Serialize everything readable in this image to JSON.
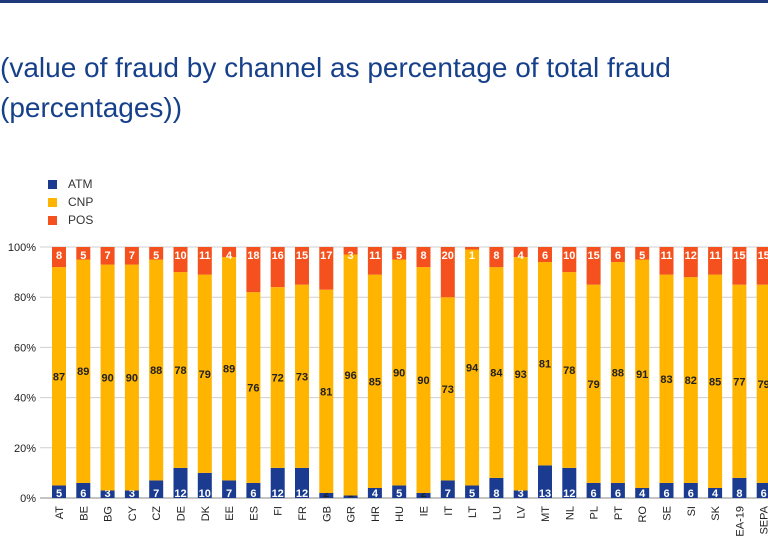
{
  "title_lines": [
    "(value of fraud by channel as percentage of total fraud",
    "(percentages))"
  ],
  "chart_data": {
    "type": "bar",
    "stacked": true,
    "categories": [
      "AT",
      "BE",
      "BG",
      "CY",
      "CZ",
      "DE",
      "DK",
      "EE",
      "ES",
      "FI",
      "FR",
      "GB",
      "GR",
      "HR",
      "HU",
      "IE",
      "IT",
      "LT",
      "LU",
      "LV",
      "MT",
      "NL",
      "PL",
      "PT",
      "RO",
      "SE",
      "SI",
      "SK",
      "EA-19",
      "SEPA"
    ],
    "series": [
      {
        "name": "ATM",
        "color": "#1a3b8f",
        "values": [
          5,
          6,
          3,
          3,
          7,
          12,
          10,
          7,
          6,
          12,
          12,
          2,
          1,
          4,
          5,
          2,
          7,
          5,
          8,
          3,
          13,
          12,
          6,
          6,
          4,
          6,
          6,
          4,
          8,
          6
        ]
      },
      {
        "name": "CNP",
        "color": "#ffb400",
        "values": [
          87,
          89,
          90,
          90,
          88,
          78,
          79,
          89,
          76,
          72,
          73,
          81,
          96,
          85,
          90,
          90,
          73,
          94,
          84,
          93,
          81,
          78,
          79,
          88,
          91,
          83,
          82,
          85,
          77,
          79
        ]
      },
      {
        "name": "POS",
        "color": "#f4511e",
        "values": [
          8,
          5,
          7,
          7,
          5,
          10,
          11,
          4,
          18,
          16,
          15,
          17,
          3,
          11,
          5,
          8,
          20,
          1,
          8,
          4,
          6,
          10,
          15,
          6,
          5,
          11,
          12,
          11,
          15,
          15
        ]
      }
    ],
    "yticks": [
      "0%",
      "20%",
      "40%",
      "60%",
      "80%",
      "100%"
    ],
    "ylim": [
      0,
      100
    ],
    "legend_position": "top-left",
    "grid": true
  }
}
